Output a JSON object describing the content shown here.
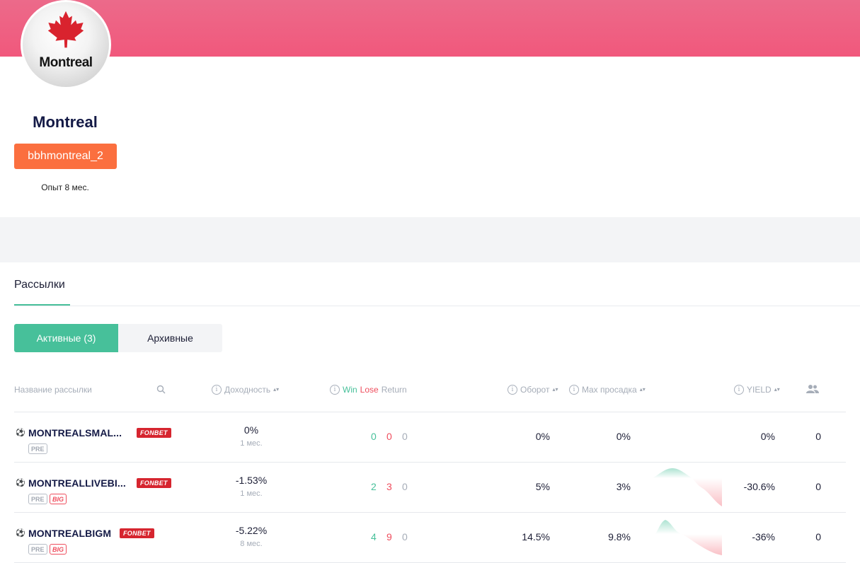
{
  "colors": {
    "banner": "#f1587c",
    "accent": "#47c09a",
    "username_bg": "#fb6f3f",
    "win": "#47c09a",
    "lose": "#ef4d5d",
    "fonbet": "#d6252f"
  },
  "profile": {
    "avatar_text": "Montreal",
    "name": "Montreal",
    "username": "bbhmontreal_2",
    "experience": "Опыт 8 мес."
  },
  "section": {
    "tab": "Рассылки"
  },
  "toggle": {
    "active": "Активные (3)",
    "archive": "Архивные"
  },
  "table": {
    "headers": {
      "name": "Название рассылки",
      "yield": "Доходность",
      "win": "Win",
      "lose": "Lose",
      "return": "Return",
      "turnover": "Оборот",
      "drawdown": "Max просадка",
      "yield_col": "YIELD"
    },
    "sort_glyph": "▴▾",
    "rows": [
      {
        "name": "MONTREALSMAL...",
        "bookmaker": "FONBET",
        "tags": [
          "PRE"
        ],
        "yield": "0%",
        "period": "1 мес.",
        "win": "0",
        "lose": "0",
        "return": "0",
        "turnover": "0%",
        "drawdown": "0%",
        "yield_total": "0%",
        "subscribers": "0",
        "sparkline": false
      },
      {
        "name": "MONTREALLIVEBI...",
        "bookmaker": "FONBET",
        "tags": [
          "PRE",
          "BIG"
        ],
        "yield": "-1.53%",
        "period": "1 мес.",
        "win": "2",
        "lose": "3",
        "return": "0",
        "turnover": "5%",
        "drawdown": "3%",
        "yield_total": "-30.6%",
        "subscribers": "0",
        "sparkline": true
      },
      {
        "name": "MONTREALBIGM",
        "bookmaker": "FONBET",
        "tags": [
          "PRE",
          "BIG"
        ],
        "yield": "-5.22%",
        "period": "8 мес.",
        "win": "4",
        "lose": "9",
        "return": "0",
        "turnover": "14.5%",
        "drawdown": "9.8%",
        "yield_total": "-36%",
        "subscribers": "0",
        "sparkline": true
      }
    ]
  }
}
